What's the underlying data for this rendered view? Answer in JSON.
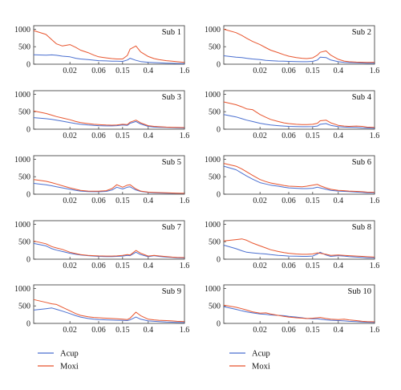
{
  "figure": {
    "legend": [
      {
        "name": "Acup",
        "color": "#4a6fd0"
      },
      {
        "name": "Moxi",
        "color": "#e8552e"
      }
    ]
  },
  "chart_data": [
    {
      "type": "line",
      "panel_label": "Sub 1",
      "x": [
        0.005,
        0.008,
        0.01,
        0.012,
        0.015,
        0.02,
        0.025,
        0.03,
        0.04,
        0.05,
        0.06,
        0.08,
        0.1,
        0.12,
        0.15,
        0.18,
        0.2,
        0.25,
        0.3,
        0.4,
        0.5,
        0.6,
        0.8,
        1.0,
        1.2,
        1.6
      ],
      "xticks": [
        "0.02",
        "0.06",
        "0.15",
        "0.4",
        "1.6"
      ],
      "yticks": [
        0,
        500,
        1000
      ],
      "ylim": [
        0,
        1100
      ],
      "xscale": "log",
      "series": [
        {
          "name": "Acup",
          "values": [
            270,
            260,
            265,
            255,
            230,
            210,
            170,
            150,
            130,
            115,
            100,
            95,
            85,
            85,
            80,
            120,
            170,
            110,
            75,
            55,
            45,
            40,
            30,
            25,
            20,
            15
          ]
        },
        {
          "name": "Moxi",
          "values": [
            960,
            850,
            700,
            580,
            520,
            560,
            480,
            400,
            330,
            260,
            210,
            180,
            160,
            150,
            150,
            250,
            430,
            520,
            350,
            220,
            160,
            130,
            100,
            85,
            70,
            50
          ]
        }
      ]
    },
    {
      "type": "line",
      "panel_label": "Sub 2",
      "x": [
        0.005,
        0.008,
        0.01,
        0.012,
        0.015,
        0.02,
        0.025,
        0.03,
        0.04,
        0.05,
        0.06,
        0.08,
        0.1,
        0.12,
        0.15,
        0.18,
        0.2,
        0.25,
        0.3,
        0.4,
        0.5,
        0.6,
        0.8,
        1.0,
        1.2,
        1.6
      ],
      "xticks": [
        "0.02",
        "0.06",
        "0.15",
        "0.4",
        "1.6"
      ],
      "yticks": [
        0,
        500,
        1000
      ],
      "ylim": [
        0,
        1100
      ],
      "xscale": "log",
      "series": [
        {
          "name": "Acup",
          "values": [
            240,
            200,
            190,
            170,
            150,
            130,
            110,
            100,
            90,
            85,
            80,
            75,
            70,
            70,
            80,
            120,
            200,
            190,
            120,
            70,
            50,
            45,
            40,
            35,
            30,
            30
          ]
        },
        {
          "name": "Moxi",
          "values": [
            1000,
            900,
            820,
            740,
            650,
            560,
            470,
            400,
            330,
            270,
            230,
            190,
            170,
            160,
            180,
            260,
            340,
            380,
            260,
            140,
            90,
            70,
            60,
            55,
            50,
            55
          ]
        }
      ]
    },
    {
      "type": "line",
      "panel_label": "Sub 3",
      "x": [
        0.005,
        0.008,
        0.01,
        0.012,
        0.015,
        0.02,
        0.025,
        0.03,
        0.04,
        0.05,
        0.06,
        0.08,
        0.1,
        0.12,
        0.15,
        0.18,
        0.2,
        0.25,
        0.3,
        0.4,
        0.5,
        0.6,
        0.8,
        1.0,
        1.2,
        1.6
      ],
      "xticks": [
        "0.02",
        "0.06",
        "0.15",
        "0.4",
        "1.6"
      ],
      "yticks": [
        0,
        500,
        1000
      ],
      "ylim": [
        0,
        1100
      ],
      "xscale": "log",
      "series": [
        {
          "name": "Acup",
          "values": [
            330,
            300,
            280,
            260,
            230,
            190,
            160,
            140,
            120,
            110,
            100,
            95,
            95,
            100,
            120,
            110,
            170,
            220,
            150,
            80,
            60,
            55,
            50,
            45,
            40,
            35
          ]
        },
        {
          "name": "Moxi",
          "values": [
            520,
            450,
            400,
            360,
            320,
            270,
            220,
            190,
            160,
            140,
            130,
            120,
            115,
            120,
            140,
            130,
            200,
            260,
            180,
            100,
            80,
            70,
            60,
            55,
            50,
            45
          ]
        }
      ]
    },
    {
      "type": "line",
      "panel_label": "Sub 4",
      "x": [
        0.005,
        0.008,
        0.01,
        0.012,
        0.015,
        0.02,
        0.025,
        0.03,
        0.04,
        0.05,
        0.06,
        0.08,
        0.1,
        0.12,
        0.15,
        0.18,
        0.2,
        0.25,
        0.3,
        0.4,
        0.5,
        0.6,
        0.8,
        1.0,
        1.2,
        1.6
      ],
      "xticks": [
        "0.02",
        "0.06",
        "0.15",
        "0.4",
        "1.6"
      ],
      "yticks": [
        0,
        500,
        1000
      ],
      "ylim": [
        0,
        1100
      ],
      "xscale": "log",
      "series": [
        {
          "name": "Acup",
          "values": [
            420,
            350,
            300,
            260,
            220,
            170,
            140,
            120,
            100,
            90,
            80,
            75,
            70,
            70,
            75,
            90,
            140,
            160,
            110,
            70,
            60,
            55,
            50,
            40,
            35,
            30
          ]
        },
        {
          "name": "Moxi",
          "values": [
            780,
            700,
            640,
            580,
            560,
            420,
            340,
            280,
            220,
            180,
            160,
            140,
            130,
            130,
            140,
            170,
            240,
            260,
            180,
            110,
            90,
            80,
            90,
            80,
            60,
            50
          ]
        }
      ]
    },
    {
      "type": "line",
      "panel_label": "Sub 5",
      "x": [
        0.005,
        0.008,
        0.01,
        0.012,
        0.015,
        0.02,
        0.025,
        0.03,
        0.04,
        0.05,
        0.06,
        0.08,
        0.1,
        0.12,
        0.15,
        0.18,
        0.2,
        0.25,
        0.3,
        0.4,
        0.5,
        0.6,
        0.8,
        1.0,
        1.2,
        1.6
      ],
      "xticks": [
        "0.02",
        "0.06",
        "0.15",
        "0.4",
        "1.6"
      ],
      "yticks": [
        0,
        500,
        1000
      ],
      "ylim": [
        0,
        1100
      ],
      "xscale": "log",
      "series": [
        {
          "name": "Acup",
          "values": [
            310,
            270,
            240,
            210,
            180,
            140,
            110,
            90,
            75,
            70,
            70,
            80,
            120,
            200,
            150,
            200,
            210,
            120,
            80,
            50,
            40,
            35,
            30,
            25,
            25,
            20
          ]
        },
        {
          "name": "Moxi",
          "values": [
            420,
            370,
            330,
            290,
            240,
            180,
            140,
            110,
            90,
            85,
            85,
            100,
            160,
            270,
            200,
            260,
            270,
            150,
            90,
            60,
            50,
            45,
            40,
            35,
            30,
            25
          ]
        }
      ]
    },
    {
      "type": "line",
      "panel_label": "Sub 6",
      "x": [
        0.005,
        0.008,
        0.01,
        0.012,
        0.015,
        0.02,
        0.025,
        0.03,
        0.04,
        0.05,
        0.06,
        0.08,
        0.1,
        0.12,
        0.15,
        0.18,
        0.2,
        0.25,
        0.3,
        0.4,
        0.5,
        0.6,
        0.8,
        1.0,
        1.2,
        1.6
      ],
      "xticks": [
        "0.02",
        "0.06",
        "0.15",
        "0.4",
        "1.6"
      ],
      "yticks": [
        0,
        500,
        1000
      ],
      "ylim": [
        0,
        1100
      ],
      "xscale": "log",
      "series": [
        {
          "name": "Acup",
          "values": [
            800,
            700,
            600,
            520,
            430,
            330,
            290,
            260,
            230,
            200,
            180,
            170,
            160,
            160,
            170,
            200,
            180,
            140,
            110,
            90,
            80,
            75,
            60,
            50,
            40,
            40
          ]
        },
        {
          "name": "Moxi",
          "values": [
            880,
            800,
            720,
            640,
            540,
            420,
            360,
            320,
            280,
            250,
            230,
            220,
            210,
            230,
            260,
            280,
            240,
            180,
            140,
            110,
            100,
            90,
            80,
            70,
            60,
            55
          ]
        }
      ]
    },
    {
      "type": "line",
      "panel_label": "Sub 7",
      "x": [
        0.005,
        0.008,
        0.01,
        0.012,
        0.015,
        0.02,
        0.025,
        0.03,
        0.04,
        0.05,
        0.06,
        0.08,
        0.1,
        0.12,
        0.15,
        0.18,
        0.2,
        0.25,
        0.3,
        0.4,
        0.5,
        0.6,
        0.8,
        1.0,
        1.2,
        1.6
      ],
      "xticks": [
        "0.02",
        "0.06",
        "0.15",
        "0.4",
        "1.6"
      ],
      "yticks": [
        0,
        500,
        1000
      ],
      "ylim": [
        0,
        1100
      ],
      "xscale": "log",
      "series": [
        {
          "name": "Acup",
          "values": [
            450,
            380,
            300,
            260,
            220,
            170,
            140,
            120,
            100,
            90,
            80,
            75,
            75,
            80,
            90,
            110,
            100,
            200,
            130,
            70,
            100,
            80,
            60,
            50,
            40,
            35
          ]
        },
        {
          "name": "Moxi",
          "values": [
            520,
            440,
            360,
            320,
            280,
            200,
            160,
            130,
            110,
            100,
            95,
            90,
            90,
            95,
            110,
            130,
            120,
            250,
            170,
            90,
            110,
            95,
            75,
            60,
            50,
            45
          ]
        }
      ]
    },
    {
      "type": "line",
      "panel_label": "Sub 8",
      "x": [
        0.005,
        0.008,
        0.01,
        0.012,
        0.015,
        0.02,
        0.025,
        0.03,
        0.04,
        0.05,
        0.06,
        0.08,
        0.1,
        0.12,
        0.15,
        0.18,
        0.2,
        0.25,
        0.3,
        0.4,
        0.5,
        0.6,
        0.8,
        1.0,
        1.2,
        1.6
      ],
      "xticks": [
        "0.02",
        "0.06",
        "0.15",
        "0.4",
        "1.6"
      ],
      "yticks": [
        0,
        500,
        1000
      ],
      "ylim": [
        0,
        1100
      ],
      "xscale": "log",
      "series": [
        {
          "name": "Acup",
          "values": [
            400,
            300,
            240,
            200,
            180,
            160,
            150,
            130,
            110,
            100,
            90,
            85,
            80,
            80,
            90,
            150,
            200,
            120,
            80,
            100,
            90,
            75,
            60,
            50,
            40,
            40
          ]
        },
        {
          "name": "Moxi",
          "values": [
            520,
            560,
            580,
            540,
            460,
            380,
            320,
            270,
            220,
            190,
            170,
            150,
            140,
            140,
            150,
            180,
            170,
            140,
            110,
            120,
            110,
            100,
            90,
            80,
            70,
            60
          ]
        }
      ]
    },
    {
      "type": "line",
      "panel_label": "Sub 9",
      "x": [
        0.005,
        0.008,
        0.01,
        0.012,
        0.015,
        0.02,
        0.025,
        0.03,
        0.04,
        0.05,
        0.06,
        0.08,
        0.1,
        0.12,
        0.15,
        0.18,
        0.2,
        0.25,
        0.3,
        0.4,
        0.5,
        0.6,
        0.8,
        1.0,
        1.2,
        1.6
      ],
      "xticks": [
        "0.02",
        "0.06",
        "0.15",
        "0.4",
        "1.6"
      ],
      "yticks": [
        0,
        500,
        1000
      ],
      "ylim": [
        0,
        1100
      ],
      "xscale": "log",
      "series": [
        {
          "name": "Acup",
          "values": [
            380,
            420,
            440,
            400,
            350,
            280,
            220,
            180,
            140,
            120,
            110,
            100,
            95,
            90,
            85,
            80,
            100,
            180,
            120,
            70,
            60,
            50,
            40,
            35,
            30,
            25
          ]
        },
        {
          "name": "Moxi",
          "values": [
            680,
            600,
            560,
            540,
            460,
            360,
            280,
            230,
            190,
            170,
            160,
            150,
            140,
            130,
            120,
            110,
            150,
            320,
            220,
            120,
            100,
            90,
            80,
            70,
            60,
            50
          ]
        }
      ]
    },
    {
      "type": "line",
      "panel_label": "Sub 10",
      "x": [
        0.005,
        0.008,
        0.01,
        0.012,
        0.015,
        0.02,
        0.025,
        0.03,
        0.04,
        0.05,
        0.06,
        0.08,
        0.1,
        0.12,
        0.15,
        0.18,
        0.2,
        0.25,
        0.3,
        0.4,
        0.5,
        0.6,
        0.8,
        1.0,
        1.2,
        1.6
      ],
      "xticks": [
        "0.02",
        "0.06",
        "0.15",
        "0.4",
        "1.6"
      ],
      "yticks": [
        0,
        500,
        1000
      ],
      "ylim": [
        0,
        1100
      ],
      "xscale": "log",
      "series": [
        {
          "name": "Acup",
          "values": [
            480,
            400,
            360,
            330,
            300,
            270,
            260,
            240,
            230,
            220,
            200,
            180,
            160,
            140,
            130,
            130,
            120,
            100,
            90,
            80,
            70,
            60,
            50,
            40,
            35,
            30
          ]
        },
        {
          "name": "Moxi",
          "values": [
            520,
            460,
            420,
            380,
            330,
            290,
            300,
            270,
            230,
            200,
            180,
            160,
            150,
            140,
            150,
            160,
            170,
            140,
            120,
            110,
            120,
            100,
            80,
            60,
            50,
            45
          ]
        }
      ]
    }
  ]
}
